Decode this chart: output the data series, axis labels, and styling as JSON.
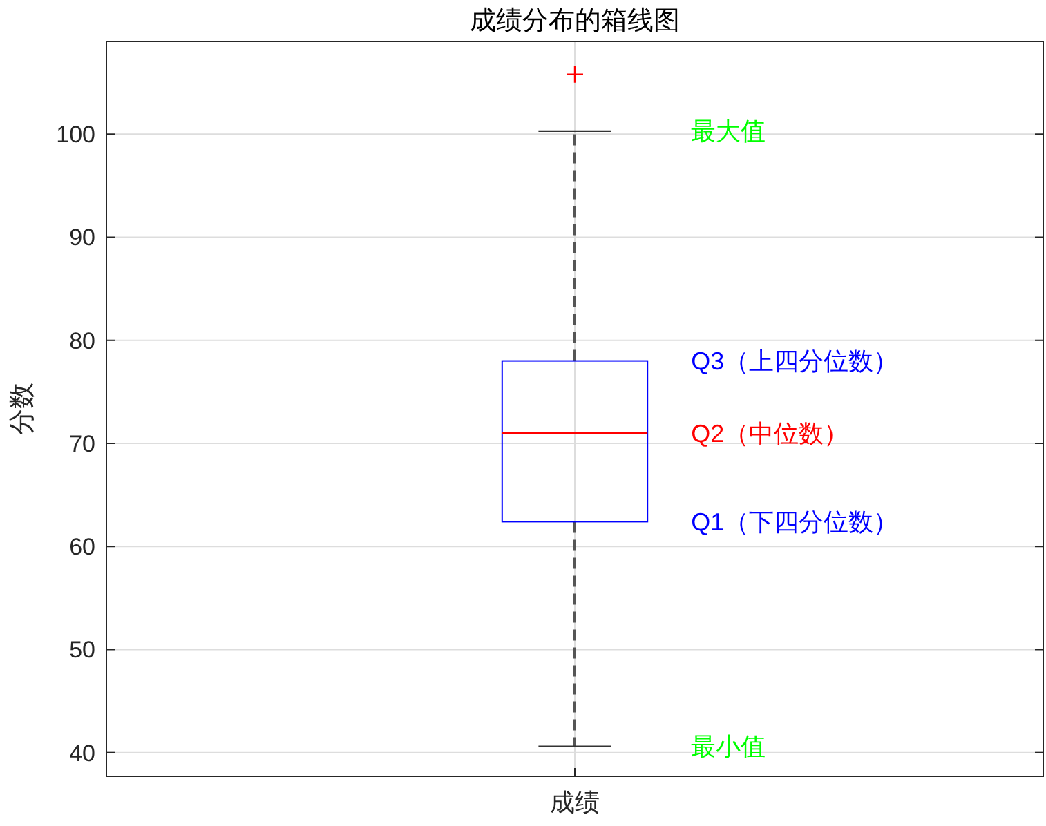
{
  "chart_data": {
    "type": "box",
    "title": "成绩分布的箱线图",
    "ylabel": "分数",
    "categories": [
      "成绩"
    ],
    "series": [
      {
        "color": "#0000ff",
        "boxes": [
          {
            "low": 40.6,
            "q1": 62.4,
            "median": 71,
            "q3": 78,
            "high": 100.3,
            "outliers": [
              105.8
            ]
          }
        ]
      }
    ],
    "ylim": [
      37.7,
      109
    ],
    "yticks": [
      40,
      50,
      60,
      70,
      80,
      90,
      100
    ],
    "grid": true,
    "annotations": [
      "最大值",
      "Q3（上四分位数）",
      "Q2（中位数）",
      "Q1（下四分位数）",
      "最小值"
    ]
  }
}
